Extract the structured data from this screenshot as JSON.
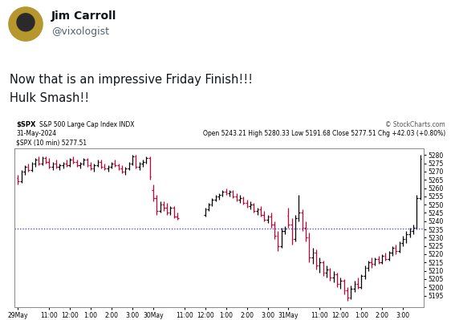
{
  "post": {
    "name": "Jim Carroll",
    "handle": "@vixologist",
    "text": "Now that is an impressive Friday Finish!!!\nHulk Smash!!"
  },
  "chart_data": {
    "type": "ohlc",
    "title": "$SPX",
    "subtitle": "S&P 500 Large Cap Index INDX",
    "date": "31-May-2024",
    "quote": "Open 5243.21 High 5280.33 Low 5191.68 Close 5277.51 Chg +42.03 (+0.80%)",
    "copyright": "© StockCharts.com",
    "series_name": "$SPX (10 min) 5277.51",
    "previous_close": 5235.48,
    "grid": false,
    "ylim": [
      5188,
      5284
    ],
    "yticks": [
      5195,
      5200,
      5205,
      5210,
      5215,
      5220,
      5225,
      5230,
      5235,
      5240,
      5245,
      5250,
      5255,
      5260,
      5265,
      5270,
      5275,
      5280
    ],
    "categories": [
      "29May",
      null,
      null,
      null,
      null,
      null,
      null,
      null,
      null,
      "11:00",
      null,
      null,
      null,
      null,
      null,
      "12:00",
      null,
      null,
      null,
      null,
      null,
      "1:00",
      null,
      null,
      null,
      null,
      null,
      "2:00",
      null,
      null,
      null,
      null,
      null,
      "3:00",
      null,
      null,
      null,
      null,
      null,
      "30May",
      null,
      null,
      null,
      null,
      null,
      null,
      null,
      null,
      "11:00",
      null,
      null,
      null,
      null,
      null,
      "12:00",
      null,
      null,
      null,
      null,
      null,
      "1:00",
      null,
      null,
      null,
      null,
      null,
      "2:00",
      null,
      null,
      null,
      null,
      null,
      "3:00",
      null,
      null,
      null,
      null,
      null,
      "31May",
      null,
      null,
      null,
      null,
      null,
      null,
      null,
      null,
      "11:00",
      null,
      null,
      null,
      null,
      null,
      "12:00",
      null,
      null,
      null,
      null,
      null,
      "1:00",
      null,
      null,
      null,
      null,
      null,
      "2:00",
      null,
      null,
      null,
      null,
      null,
      "3:00",
      null,
      null,
      null,
      null,
      null
    ],
    "ohlc": [
      [
        5266,
        5268,
        5262,
        5264
      ],
      [
        5264,
        5271,
        5263,
        5270
      ],
      [
        5270,
        5274,
        5268,
        5273
      ],
      [
        5273,
        5275,
        5270,
        5271
      ],
      [
        5271,
        5276,
        5270,
        5275
      ],
      [
        5275,
        5278,
        5273,
        5277
      ],
      [
        5277,
        5279,
        5274,
        5275
      ],
      [
        5275,
        5279,
        5274,
        5278
      ],
      [
        5278,
        5279,
        5275,
        5276
      ],
      [
        5276,
        5278,
        5272,
        5273
      ],
      [
        5273,
        5276,
        5271,
        5275
      ],
      [
        5275,
        5277,
        5272,
        5273
      ],
      [
        5273,
        5275,
        5271,
        5274
      ],
      [
        5274,
        5276,
        5272,
        5275
      ],
      [
        5275,
        5277,
        5273,
        5274
      ],
      [
        5274,
        5278,
        5273,
        5277
      ],
      [
        5277,
        5279,
        5275,
        5276
      ],
      [
        5276,
        5277,
        5273,
        5274
      ],
      [
        5274,
        5276,
        5272,
        5275
      ],
      [
        5275,
        5278,
        5274,
        5277
      ],
      [
        5277,
        5278,
        5273,
        5274
      ],
      [
        5274,
        5276,
        5271,
        5272
      ],
      [
        5272,
        5275,
        5270,
        5274
      ],
      [
        5274,
        5277,
        5273,
        5276
      ],
      [
        5276,
        5277,
        5272,
        5273
      ],
      [
        5273,
        5275,
        5271,
        5272
      ],
      [
        5272,
        5274,
        5270,
        5273
      ],
      [
        5273,
        5276,
        5272,
        5275
      ],
      [
        5275,
        5277,
        5273,
        5274
      ],
      [
        5274,
        5275,
        5271,
        5272
      ],
      [
        5272,
        5274,
        5269,
        5270
      ],
      [
        5270,
        5273,
        5268,
        5272
      ],
      [
        5272,
        5276,
        5271,
        5275
      ],
      [
        5275,
        5280,
        5274,
        5279
      ],
      [
        5279,
        5280,
        5272,
        5273
      ],
      [
        5273,
        5276,
        5271,
        5275
      ],
      [
        5275,
        5277,
        5273,
        5276
      ],
      [
        5276,
        5279,
        5275,
        5278
      ],
      [
        5278,
        5279,
        5265,
        5266.8
      ],
      [
        5259,
        5262,
        5252,
        5254
      ],
      [
        5254,
        5256,
        5244,
        5246
      ],
      [
        5246,
        5252,
        5245,
        5250
      ],
      [
        5250,
        5252,
        5246,
        5248
      ],
      [
        5248,
        5251,
        5244,
        5245
      ],
      [
        5245,
        5249,
        5244,
        5248
      ],
      [
        5248,
        5249,
        5242,
        5243
      ],
      [
        5243,
        5245,
        5241,
        5242
      ],
      null,
      null,
      null,
      null,
      null,
      null,
      null,
      [
        5244,
        5248,
        5243,
        5247
      ],
      [
        5247,
        5251,
        5246,
        5250
      ],
      [
        5250,
        5254,
        5249,
        5253
      ],
      [
        5253,
        5256,
        5252,
        5255
      ],
      [
        5255,
        5257,
        5253,
        5256
      ],
      [
        5256,
        5259,
        5255,
        5258
      ],
      [
        5258,
        5260,
        5256,
        5257
      ],
      [
        5257,
        5259,
        5255,
        5258
      ],
      [
        5258,
        5259,
        5254,
        5255
      ],
      [
        5255,
        5257,
        5252,
        5253
      ],
      [
        5253,
        5256,
        5251,
        5254
      ],
      [
        5254,
        5255,
        5250,
        5251
      ],
      [
        5251,
        5253,
        5248,
        5249
      ],
      [
        5249,
        5252,
        5247,
        5250
      ],
      [
        5250,
        5251,
        5245,
        5246
      ],
      [
        5246,
        5248,
        5244,
        5247
      ],
      [
        5247,
        5249,
        5243,
        5244
      ],
      [
        5244,
        5246,
        5240,
        5241
      ],
      [
        5241,
        5244,
        5239,
        5243
      ],
      [
        5243,
        5245,
        5236,
        5238
      ],
      [
        5238,
        5240,
        5229,
        5231
      ],
      [
        5231,
        5234,
        5222,
        5225
      ],
      [
        5225,
        5236,
        5224,
        5234
      ],
      [
        5234,
        5237,
        5232,
        5235.48
      ],
      [
        5243.21,
        5248,
        5236,
        5238
      ],
      [
        5238,
        5242,
        5226,
        5229
      ],
      [
        5229,
        5244,
        5228,
        5242
      ],
      [
        5242,
        5256,
        5240,
        5245
      ],
      [
        5245,
        5247,
        5234,
        5236
      ],
      [
        5236,
        5240,
        5228,
        5230
      ],
      [
        5230,
        5233,
        5215,
        5218
      ],
      [
        5218,
        5224,
        5214,
        5221
      ],
      [
        5221,
        5223,
        5211,
        5213
      ],
      [
        5213,
        5218,
        5209,
        5215
      ],
      [
        5215,
        5216,
        5207,
        5209
      ],
      [
        5209,
        5213,
        5206,
        5211
      ],
      [
        5211,
        5212,
        5204,
        5206
      ],
      [
        5206,
        5210,
        5203,
        5208
      ],
      [
        5208,
        5209,
        5200,
        5202
      ],
      [
        5202,
        5206,
        5199,
        5204
      ],
      [
        5204,
        5205,
        5196,
        5198
      ],
      [
        5198,
        5200,
        5191.68,
        5194
      ],
      [
        5194,
        5201,
        5193,
        5199
      ],
      [
        5199,
        5204,
        5197,
        5202
      ],
      [
        5202,
        5206,
        5199,
        5200
      ],
      [
        5200,
        5208,
        5199,
        5207
      ],
      [
        5207,
        5213,
        5205,
        5212
      ],
      [
        5212,
        5216,
        5210,
        5215
      ],
      [
        5215,
        5218,
        5212,
        5214
      ],
      [
        5214,
        5218,
        5213,
        5217
      ],
      [
        5217,
        5219,
        5214,
        5215
      ],
      [
        5215,
        5220,
        5214,
        5219
      ],
      [
        5219,
        5221,
        5216,
        5217
      ],
      [
        5217,
        5222,
        5216,
        5221
      ],
      [
        5221,
        5225,
        5219,
        5224
      ],
      [
        5224,
        5226,
        5220,
        5222
      ],
      [
        5222,
        5228,
        5221,
        5227
      ],
      [
        5227,
        5231,
        5225,
        5229
      ],
      [
        5229,
        5234,
        5227,
        5232
      ],
      [
        5232,
        5236,
        5230,
        5234
      ],
      [
        5234,
        5238,
        5232,
        5236
      ],
      [
        5236,
        5256,
        5235,
        5254
      ],
      [
        5254,
        5280.33,
        5253,
        5277.51
      ]
    ],
    "colors": [
      "#cc0033",
      "#000000",
      "#000000",
      "#cc0033",
      "#000000",
      "#000000",
      "#cc0033",
      "#000000",
      "#cc0033",
      "#cc0033",
      "#000000",
      "#cc0033",
      "#000000",
      "#000000",
      "#cc0033",
      "#000000",
      "#cc0033",
      "#cc0033",
      "#000000",
      "#000000",
      "#cc0033",
      "#cc0033",
      "#000000",
      "#000000",
      "#cc0033",
      "#cc0033",
      "#000000",
      "#000000",
      "#cc0033",
      "#cc0033",
      "#cc0033",
      "#000000",
      "#000000",
      "#000000",
      "#cc0033",
      "#000000",
      "#000000",
      "#000000",
      "#cc0033",
      "#cc0033",
      "#cc0033",
      "#000000",
      "#cc0033",
      "#cc0033",
      "#000000",
      "#cc0033",
      "#cc0033",
      null,
      null,
      null,
      null,
      null,
      null,
      null,
      "#000000",
      "#000000",
      "#000000",
      "#000000",
      "#000000",
      "#000000",
      "#cc0033",
      "#000000",
      "#cc0033",
      "#cc0033",
      "#000000",
      "#cc0033",
      "#cc0033",
      "#000000",
      "#cc0033",
      "#000000",
      "#cc0033",
      "#cc0033",
      "#000000",
      "#cc0033",
      "#cc0033",
      "#cc0033",
      "#000000",
      "#000000",
      "#cc0033",
      "#cc0033",
      "#000000",
      "#000000",
      "#cc0033",
      "#cc0033",
      "#cc0033",
      "#000000",
      "#cc0033",
      "#000000",
      "#cc0033",
      "#000000",
      "#cc0033",
      "#000000",
      "#cc0033",
      "#000000",
      "#cc0033",
      "#cc0033",
      "#000000",
      "#000000",
      "#cc0033",
      "#000000",
      "#000000",
      "#000000",
      "#cc0033",
      "#000000",
      "#cc0033",
      "#000000",
      "#cc0033",
      "#000000",
      "#000000",
      "#cc0033",
      "#000000",
      "#000000",
      "#000000",
      "#000000",
      "#000000",
      "#000000",
      "#000000"
    ]
  }
}
